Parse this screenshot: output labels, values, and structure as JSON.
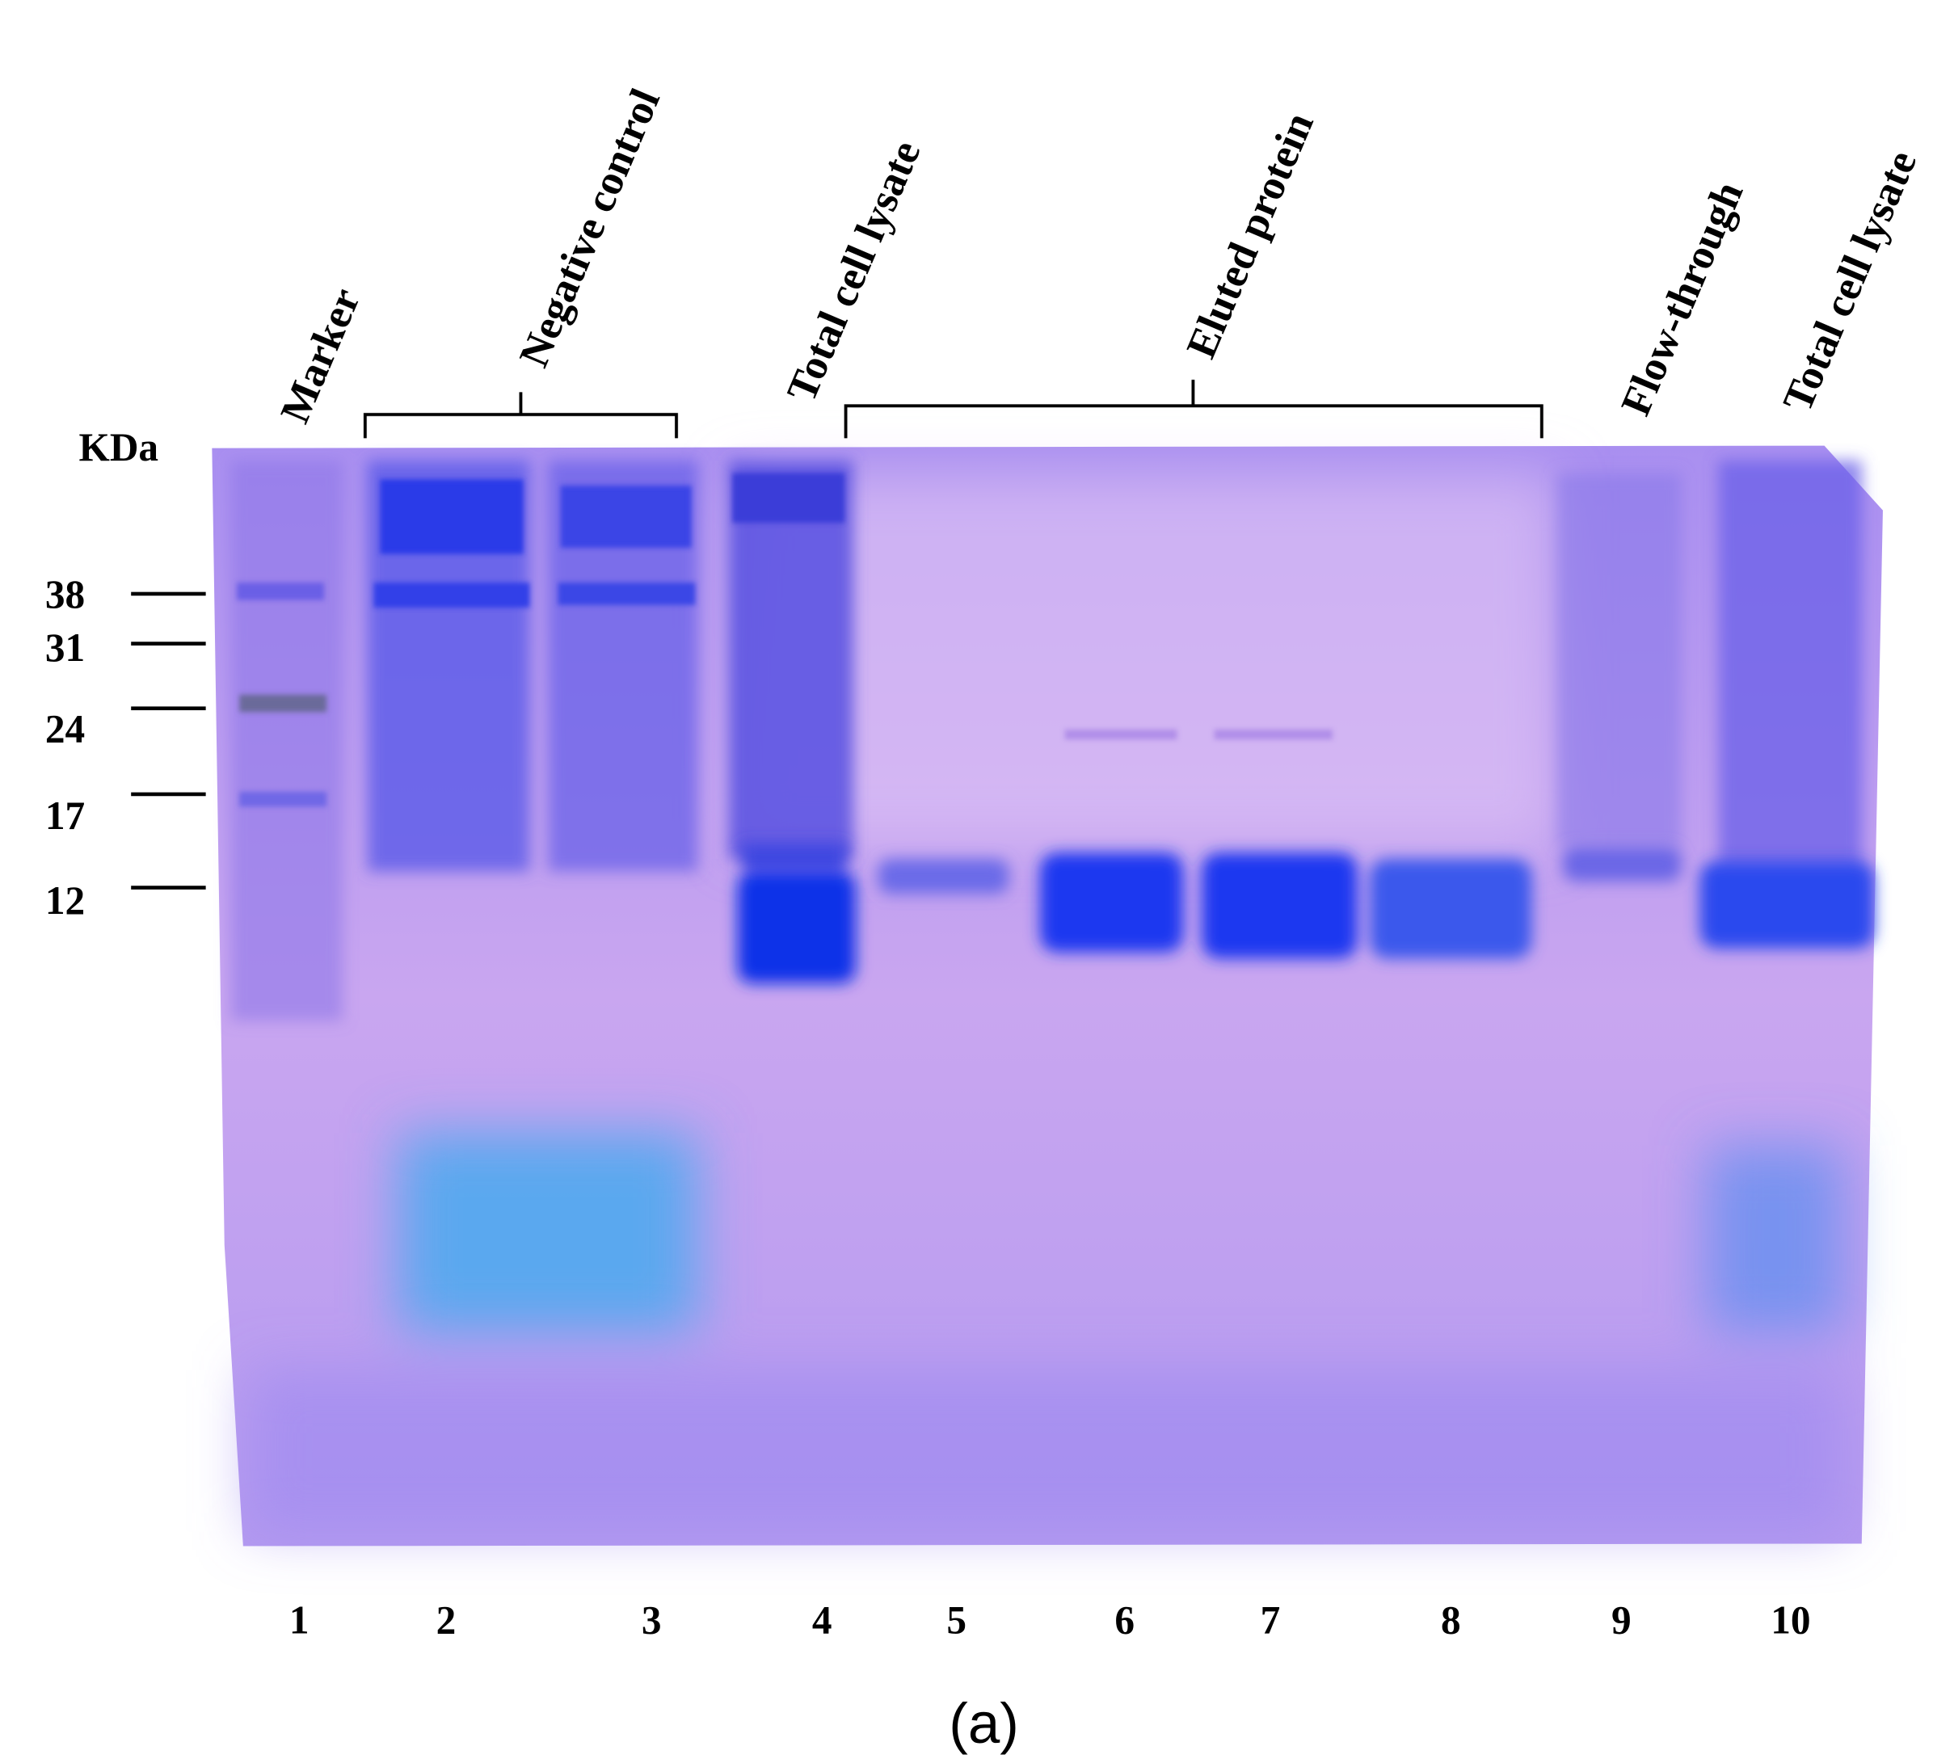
{
  "figure": {
    "lane_labels": [
      "Marker",
      "Negative control",
      "Total cell lysate",
      "Eluted protein",
      "Flow-through",
      "Total cell lysate"
    ],
    "unit": "KDa",
    "markers": [
      "38",
      "31",
      "24",
      "17",
      "12"
    ],
    "lane_numbers": [
      "1",
      "2",
      "3",
      "4",
      "5",
      "6",
      "7",
      "8",
      "9",
      "10"
    ],
    "caption": "(a)"
  }
}
